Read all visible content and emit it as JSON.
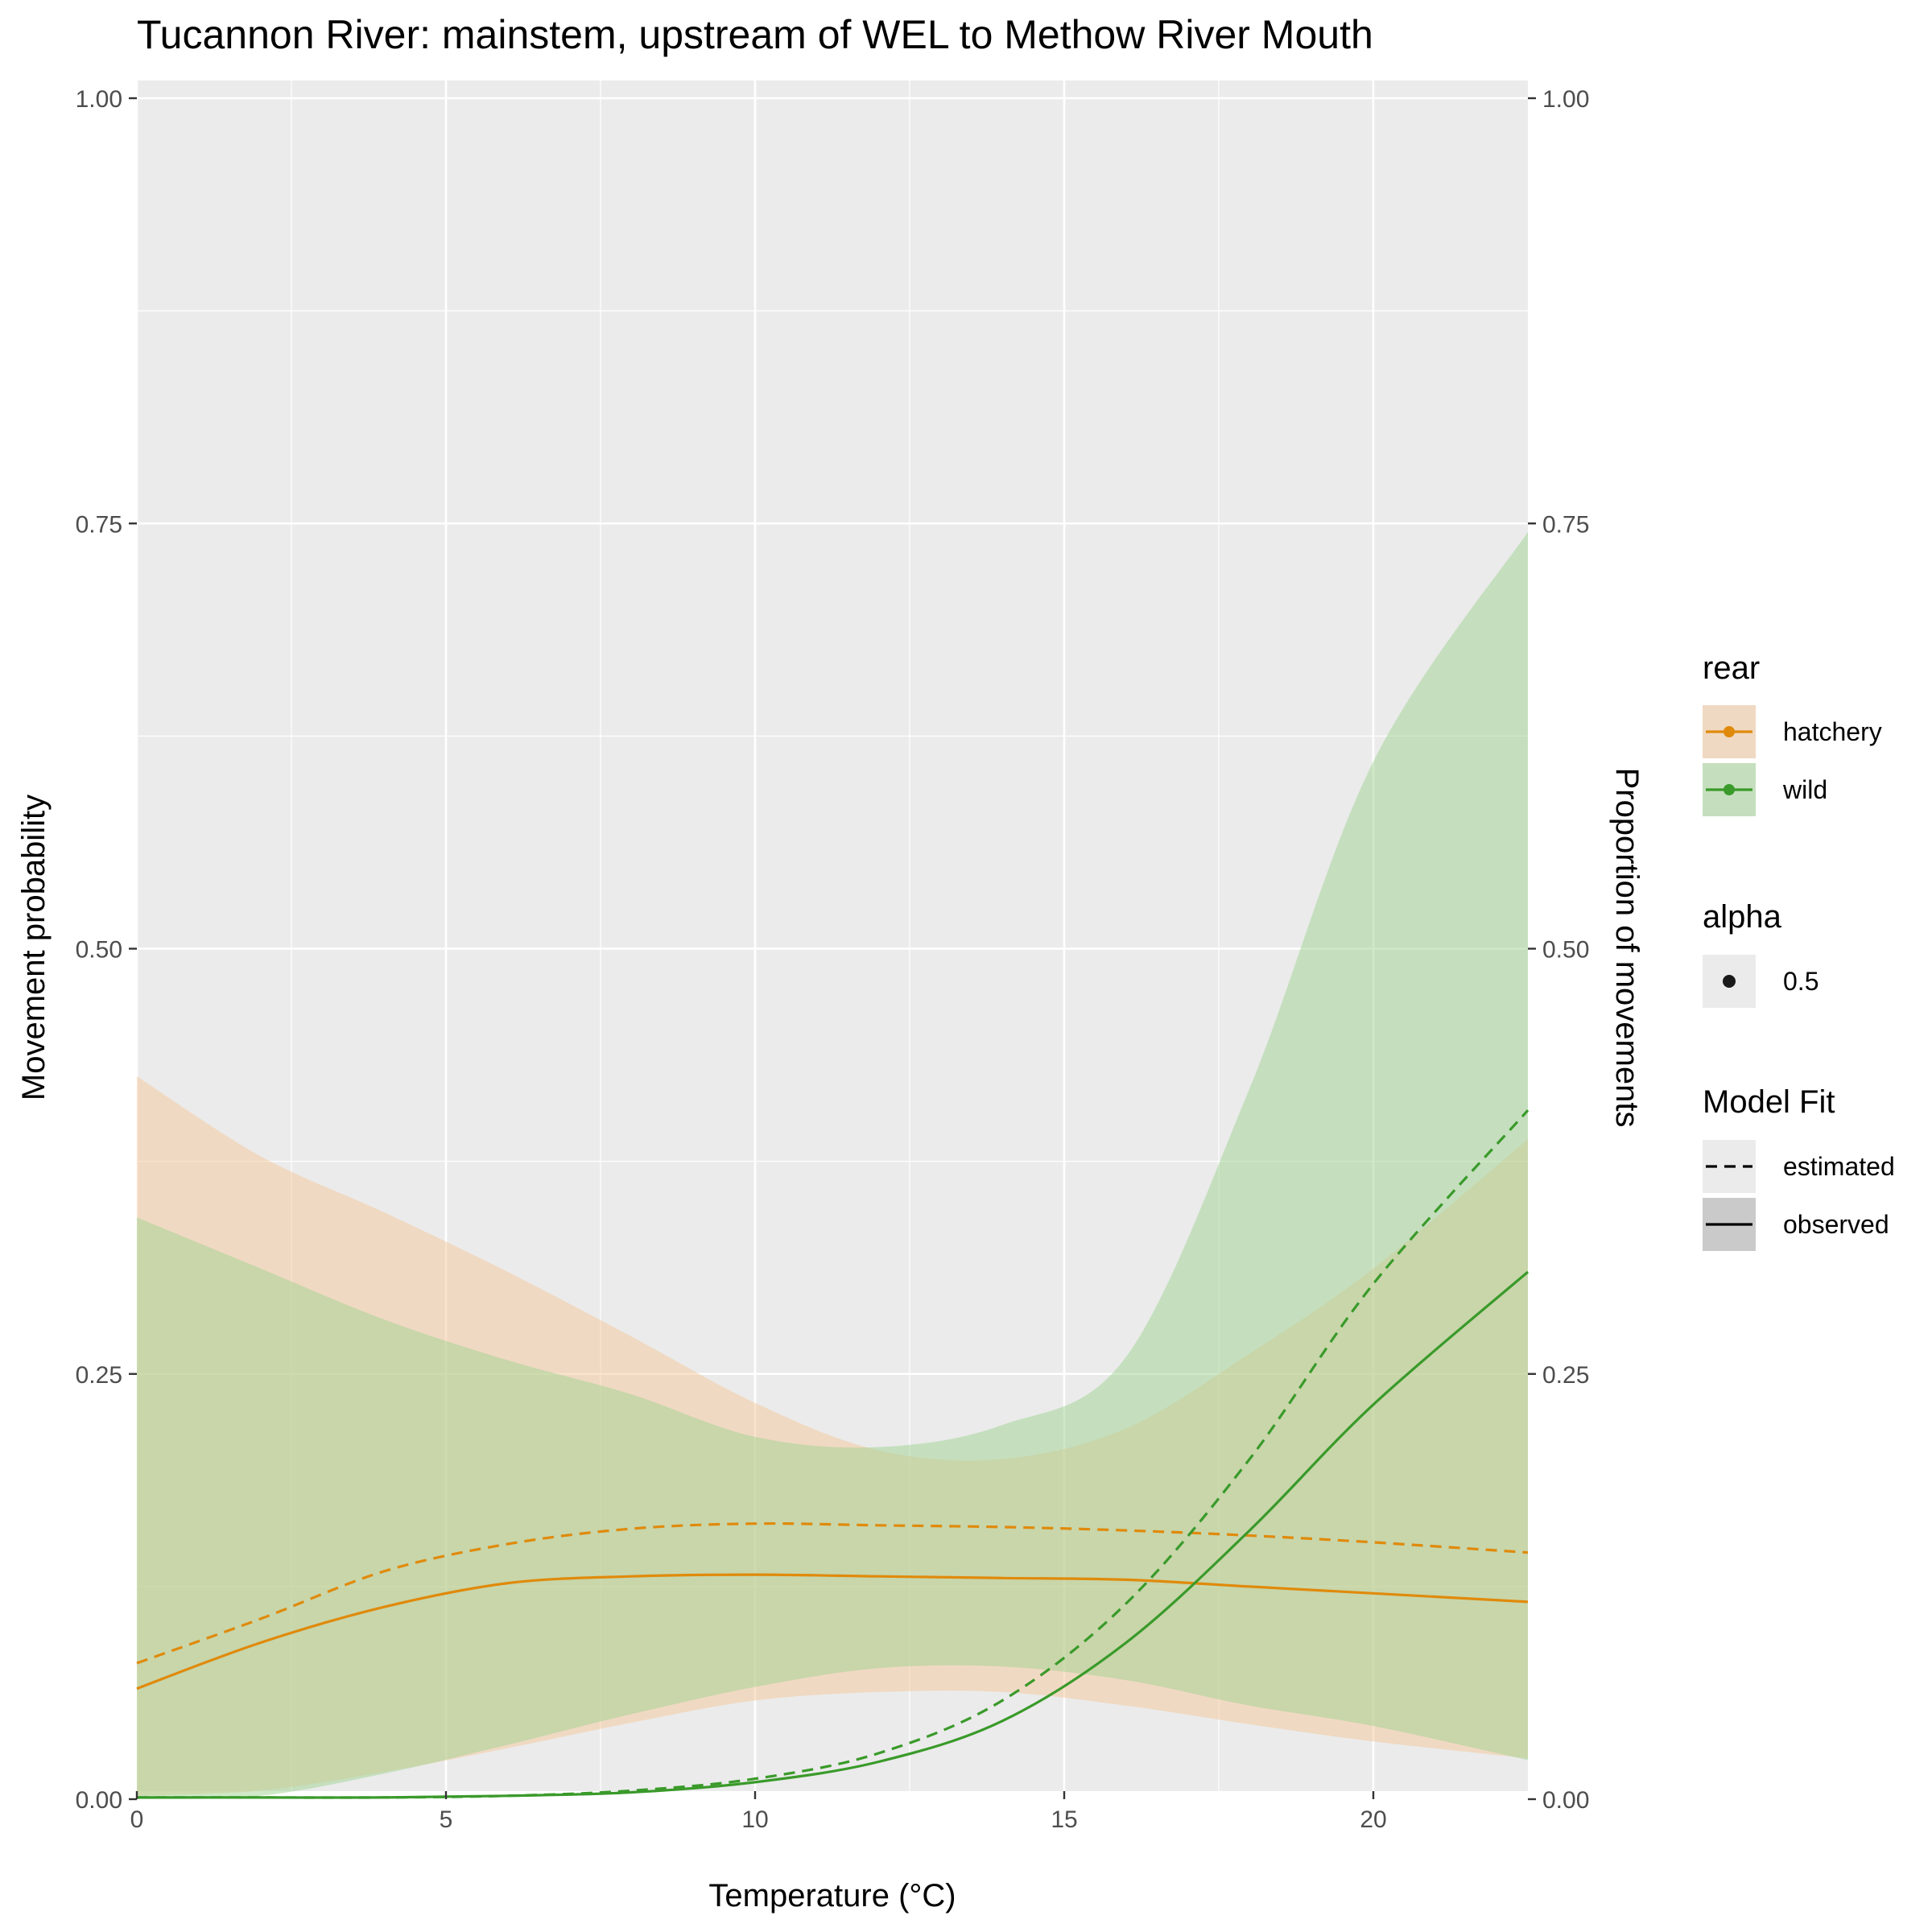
{
  "chart_data": {
    "type": "line",
    "title": "Tucannon River: mainstem, upstream of WEL to Methow River Mouth",
    "xlabel": "Temperature (°C)",
    "ylabel": "Movement probability",
    "ylabel_right": "Proportion of movements",
    "xlim": [
      0,
      22.5
    ],
    "ylim": [
      0,
      1
    ],
    "x_ticks": [
      0,
      5,
      10,
      15,
      20
    ],
    "x_tick_labels": [
      "0",
      "5",
      "10",
      "15",
      "20"
    ],
    "y_ticks": [
      0,
      0.25,
      0.5,
      0.75,
      1
    ],
    "y_tick_labels": [
      "0.00",
      "0.25",
      "0.50",
      "0.75",
      "1.00"
    ],
    "grid": true,
    "legend_position": "right",
    "colors": {
      "hatchery": "#e08a0b",
      "hatchery_fill": "#f6c79a",
      "wild": "#3a9a2a",
      "wild_fill": "#9fd491",
      "panel_bg": "#ebebeb",
      "grid": "#ffffff"
    },
    "x": [
      0,
      2,
      4,
      6,
      8,
      10,
      12,
      14,
      16,
      18,
      20,
      22.5
    ],
    "series": [
      {
        "name": "hatchery",
        "group": "hatchery",
        "model_fit": "observed",
        "values": [
          0.065,
          0.092,
          0.113,
          0.127,
          0.131,
          0.132,
          0.131,
          0.13,
          0.129,
          0.125,
          0.121,
          0.116
        ]
      },
      {
        "name": "hatchery",
        "group": "hatchery",
        "model_fit": "estimated",
        "values": [
          0.08,
          0.106,
          0.134,
          0.15,
          0.159,
          0.162,
          0.161,
          0.16,
          0.158,
          0.155,
          0.151,
          0.145
        ]
      },
      {
        "name": "wild",
        "group": "wild",
        "model_fit": "observed",
        "values": [
          0.001,
          0.001,
          0.001,
          0.002,
          0.004,
          0.01,
          0.022,
          0.046,
          0.092,
          0.158,
          0.232,
          0.31
        ]
      },
      {
        "name": "wild",
        "group": "wild",
        "model_fit": "estimated",
        "values": [
          0.001,
          0.001,
          0.001,
          0.002,
          0.005,
          0.012,
          0.027,
          0.058,
          0.115,
          0.2,
          0.303,
          0.405
        ]
      }
    ],
    "ribbons": [
      {
        "group": "hatchery",
        "upper": [
          0.425,
          0.378,
          0.345,
          0.31,
          0.272,
          0.233,
          0.205,
          0.2,
          0.218,
          0.262,
          0.312,
          0.388
        ],
        "lower": [
          0.002,
          0.005,
          0.016,
          0.03,
          0.045,
          0.058,
          0.063,
          0.063,
          0.055,
          0.044,
          0.034,
          0.024
        ]
      },
      {
        "group": "wild",
        "upper": [
          0.342,
          0.312,
          0.282,
          0.258,
          0.238,
          0.213,
          0.207,
          0.22,
          0.26,
          0.418,
          0.61,
          0.745
        ],
        "lower": [
          0.0,
          0.002,
          0.015,
          0.032,
          0.05,
          0.066,
          0.077,
          0.078,
          0.07,
          0.055,
          0.043,
          0.023
        ]
      }
    ],
    "legends": [
      {
        "title": "rear",
        "items": [
          {
            "label": "hatchery",
            "key": "hatchery"
          },
          {
            "label": "wild",
            "key": "wild"
          }
        ]
      },
      {
        "title": "alpha",
        "items": [
          {
            "label": "0.5",
            "key": "alpha"
          }
        ]
      },
      {
        "title": "Model Fit",
        "items": [
          {
            "label": "estimated",
            "key": "estimated"
          },
          {
            "label": "observed",
            "key": "observed"
          }
        ]
      }
    ]
  }
}
